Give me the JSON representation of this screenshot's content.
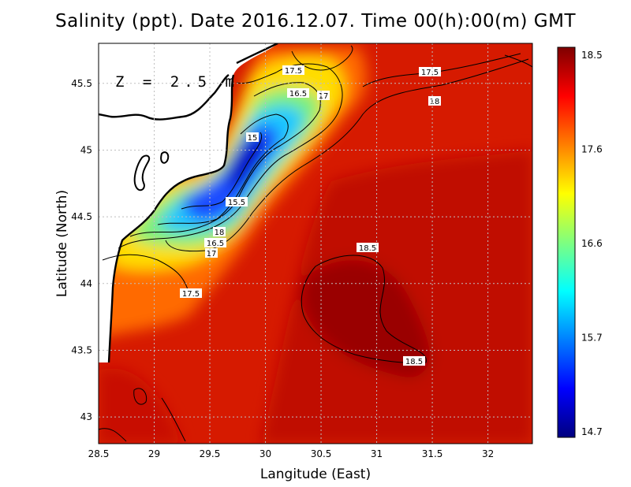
{
  "title": "Salinity (ppt). Date 2016.12.07. Time 00(h):00(m) GMT",
  "depth_label": "Z = 2.5 m",
  "axes": {
    "xlabel": "Langitude (East)",
    "ylabel": "Latitude (North)",
    "x_ticks": [
      "28.5",
      "29",
      "29.5",
      "30",
      "30.5",
      "31",
      "31.5",
      "32"
    ],
    "y_ticks": [
      "43",
      "43.5",
      "44",
      "44.5",
      "45",
      "45.5"
    ],
    "x_range": [
      28.5,
      32.4
    ],
    "y_range": [
      42.8,
      45.8
    ]
  },
  "colorbar": {
    "ticks": [
      "18.5",
      "17.6",
      "16.6",
      "15.7",
      "14.7"
    ],
    "min": 14.7,
    "max": 18.5,
    "colors": [
      "#00007f",
      "#0000ff",
      "#007fff",
      "#00ffff",
      "#7fff7f",
      "#ffff00",
      "#ff7f00",
      "#ff0000",
      "#7f0000"
    ]
  },
  "contour_labels": [
    "17.5",
    "17.5",
    "16.5",
    "17",
    "18",
    "15",
    "15.5",
    "18",
    "16.5",
    "17",
    "17.5",
    "18.5",
    "18.5"
  ],
  "colors": {
    "land": "#ffffff",
    "coast": "#000000",
    "grid": "#bfbfbf"
  }
}
